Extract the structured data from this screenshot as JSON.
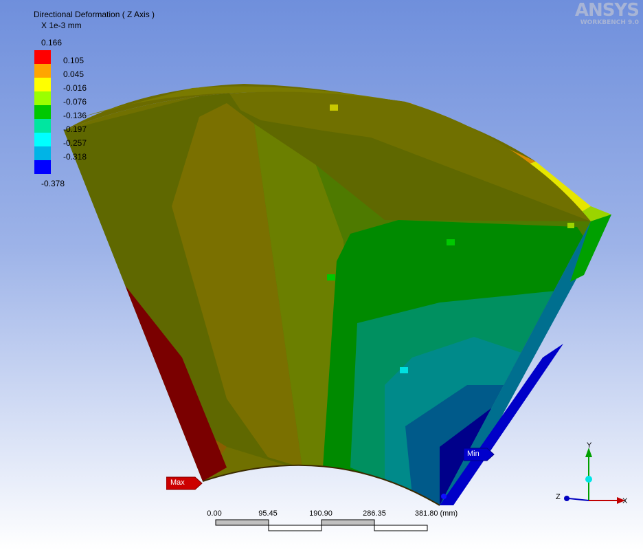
{
  "result": {
    "title": "Directional Deformation ( Z Axis )",
    "units": "X 1e-3 mm"
  },
  "legend": {
    "top_value": "0.166",
    "bottom_value": "-0.378",
    "bands": [
      {
        "color": "#ff0000",
        "label": "0.105"
      },
      {
        "color": "#ffa500",
        "label": "0.045"
      },
      {
        "color": "#ffff00",
        "label": "-0.016"
      },
      {
        "color": "#9bff00",
        "label": "-0.076"
      },
      {
        "color": "#00c800",
        "label": "-0.136"
      },
      {
        "color": "#00e6a0",
        "label": "-0.197"
      },
      {
        "color": "#00ffff",
        "label": "-0.257"
      },
      {
        "color": "#00b4e6",
        "label": "-0.318"
      },
      {
        "color": "#0000ff",
        "label": ""
      }
    ]
  },
  "logo": {
    "brand": "ANSYS",
    "product": "WORKBENCH 9.0"
  },
  "probes": {
    "max_label": "Max",
    "min_label": "Min"
  },
  "scale_bar": {
    "ticks": [
      "0.00",
      "95.45",
      "190.90",
      "286.35",
      "381.80 (mm)"
    ]
  },
  "triad": {
    "x_label": "X",
    "y_label": "Y",
    "z_label": "Z"
  },
  "colors": {
    "max_tag": "#cc0000",
    "min_tag": "#0000cc",
    "triad_x": "#c00000",
    "triad_y": "#00a000",
    "triad_z": "#0000c0"
  }
}
